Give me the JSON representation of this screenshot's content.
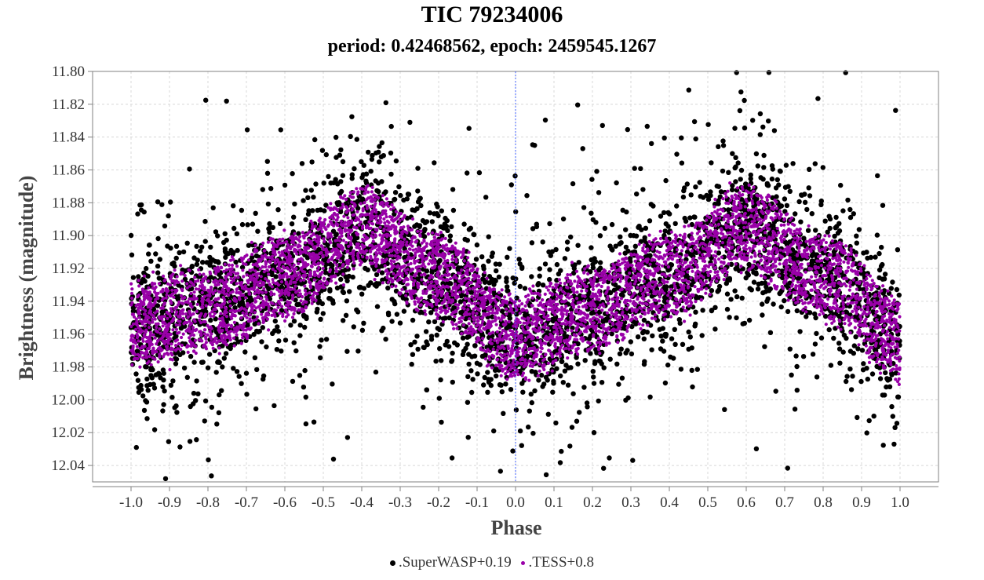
{
  "chart_data": {
    "type": "scatter",
    "title": "TIC 79234006",
    "subtitle": "period: 0.42468562, epoch: 2459545.1267",
    "xlabel": "Phase",
    "ylabel": "Brightness (magnitude)",
    "xlim": [
      -1.0,
      1.0
    ],
    "ylim": [
      12.05,
      11.8
    ],
    "y_inverted": true,
    "x_ticks": [
      "-1.0",
      "-0.9",
      "-0.8",
      "-0.7",
      "-0.6",
      "-0.5",
      "-0.4",
      "-0.3",
      "-0.2",
      "-0.1",
      "0.0",
      "0.1",
      "0.2",
      "0.3",
      "0.4",
      "0.5",
      "0.6",
      "0.7",
      "0.8",
      "0.9",
      "1.0"
    ],
    "y_ticks": [
      "11.80",
      "11.82",
      "11.84",
      "11.86",
      "11.88",
      "11.90",
      "11.92",
      "11.94",
      "11.96",
      "11.98",
      "12.00",
      "12.02",
      "12.04"
    ],
    "grid": true,
    "legend_position": "bottom",
    "series": [
      {
        "name": ".SuperWASP+0.19",
        "color": "#000000",
        "description_points": "phase-folded light curve, band centered on sinusoid, scatter about ±0.06 mag",
        "trend_x": [
          -1.0,
          -0.8,
          -0.6,
          -0.4,
          -0.2,
          0.0,
          0.2,
          0.4,
          0.6,
          0.8,
          1.0
        ],
        "trend_y": [
          11.955,
          11.945,
          11.925,
          11.895,
          11.925,
          11.962,
          11.945,
          11.925,
          11.895,
          11.925,
          11.962
        ]
      },
      {
        "name": ".TESS+0.8",
        "color": "#9900a8",
        "trend_x": [
          -1.0,
          -0.8,
          -0.6,
          -0.4,
          -0.2,
          0.0,
          0.2,
          0.4,
          0.6,
          0.8,
          1.0
        ],
        "trend_y": [
          11.955,
          11.945,
          11.925,
          11.895,
          11.925,
          11.962,
          11.945,
          11.925,
          11.895,
          11.925,
          11.962
        ]
      }
    ],
    "zero_line_x": 0.0
  }
}
